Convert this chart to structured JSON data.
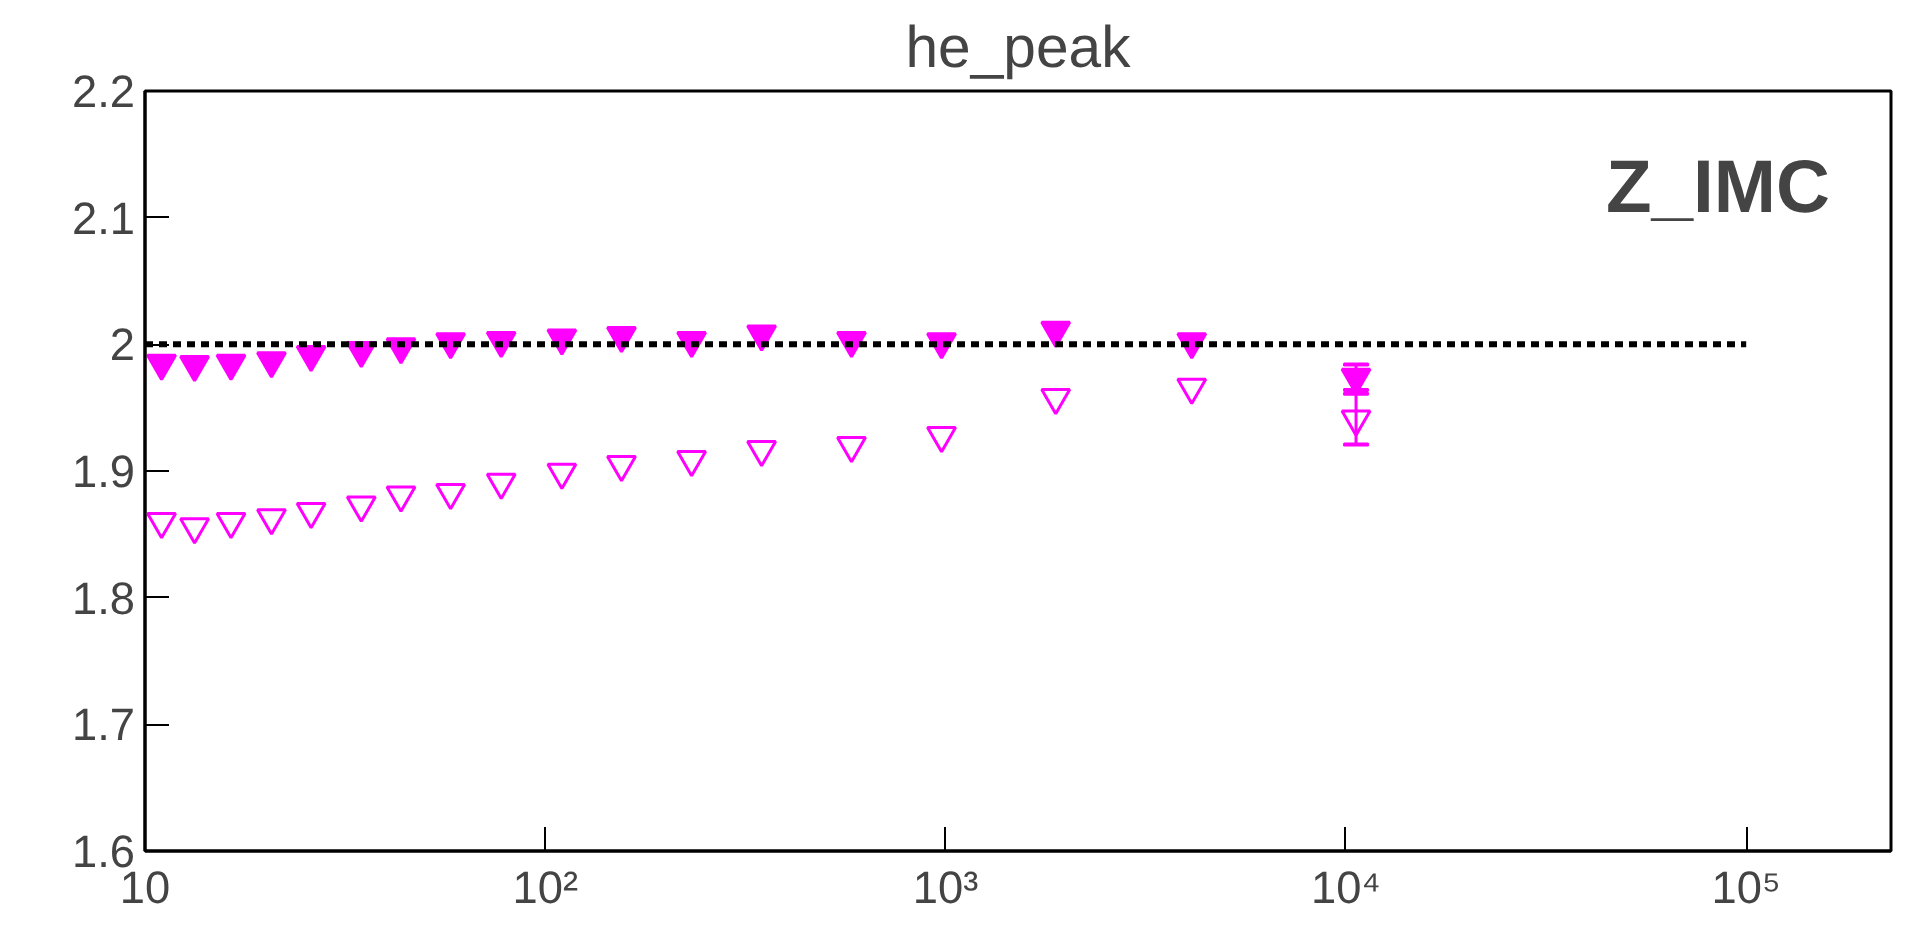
{
  "chart_data": {
    "type": "scatter",
    "title": "he_peak",
    "annotations": [
      "Z_IMC"
    ],
    "log": "x",
    "xlim": [
      10,
      230000
    ],
    "ylim": [
      1.6,
      2.2
    ],
    "xticks": [
      10,
      {
        "value": 100,
        "label": "10²"
      },
      {
        "value": 1000,
        "label": "10³"
      },
      {
        "value": 10000,
        "label": "10⁴"
      },
      {
        "value": 100000,
        "label": "10⁵"
      }
    ],
    "yticks": [
      1.6,
      1.7,
      1.8,
      1.9,
      2,
      2.1,
      2.2
    ],
    "grid": false,
    "marker": "triangle",
    "series": [
      {
        "color": "#ff00ff",
        "x": [
          11,
          13.3,
          16.4,
          20.7,
          26,
          34.7,
          43.6,
          58,
          77.6,
          110,
          155,
          232,
          347,
          582,
          977,
          1884,
          4120,
          10600
        ],
        "values": [
          1.985,
          1.984,
          1.985,
          1.987,
          1.992,
          1.995,
          1.998,
          2.002,
          2.003,
          2.005,
          2.007,
          2.003,
          2.008,
          2.003,
          2.002,
          2.011,
          2.002,
          1.974
        ],
        "errors": [
          null,
          null,
          null,
          null,
          null,
          null,
          null,
          null,
          null,
          null,
          null,
          null,
          null,
          null,
          null,
          null,
          null,
          0.01
        ]
      },
      {
        "color": "#ff00ff",
        "x": [
          11,
          13.3,
          16.4,
          20.7,
          26,
          34.7,
          43.6,
          58,
          77.6,
          110,
          155,
          232,
          347,
          582,
          977,
          1884,
          4120,
          10600
        ],
        "values": [
          1.86,
          1.856,
          1.86,
          1.863,
          1.868,
          1.873,
          1.881,
          1.883,
          1.891,
          1.899,
          1.905,
          1.909,
          1.917,
          1.92,
          1.928,
          1.958,
          1.966,
          1.941
        ],
        "errors": [
          null,
          null,
          null,
          null,
          null,
          null,
          null,
          null,
          null,
          null,
          null,
          null,
          null,
          null,
          null,
          null,
          null,
          0.02
        ]
      },
      {
        "type": "line",
        "color": "#000000",
        "line_style": "dotted",
        "marker": "none",
        "x": [
          10,
          100000
        ],
        "values": [
          2,
          2
        ]
      }
    ]
  }
}
